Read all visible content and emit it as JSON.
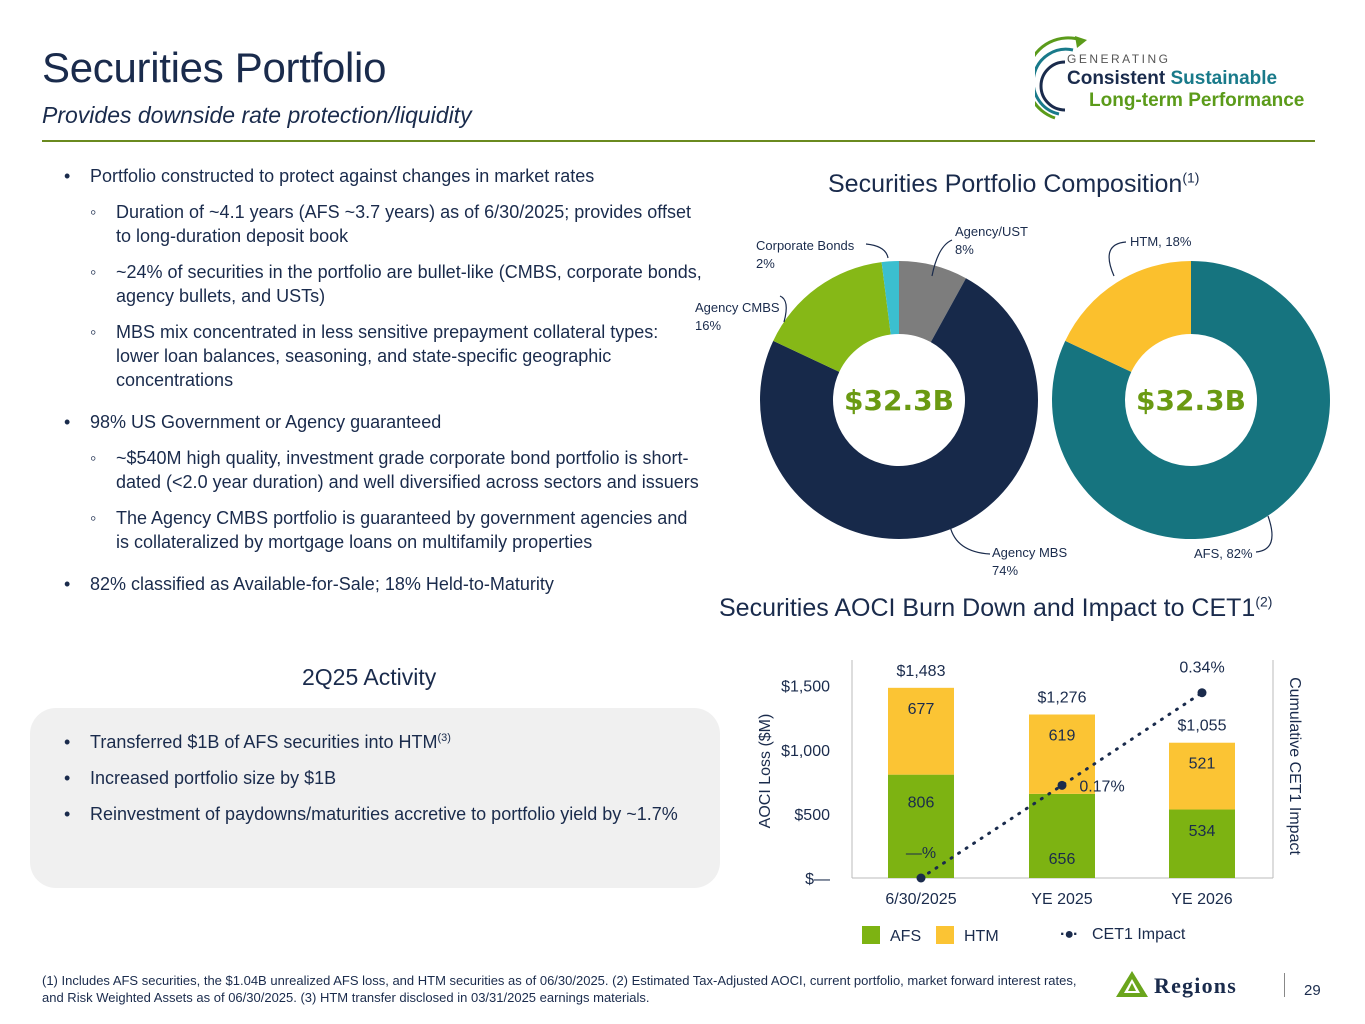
{
  "header": {
    "title": "Securities Portfolio",
    "subtitle": "Provides downside rate protection/liquidity",
    "tagline_top": "GENERATING",
    "tagline_consistent": "Consistent",
    "tagline_sustainable": "Sustainable",
    "tagline_bottom": "Long-term Performance",
    "colors": {
      "navy": "#1a2b4c",
      "green": "#6a9a12",
      "teal": "#197a8a",
      "rule": "#6a8a1f"
    }
  },
  "bullets": [
    {
      "level": 1,
      "text": "Portfolio constructed to protect against changes in market rates"
    },
    {
      "level": 2,
      "text": "Duration of  ~4.1 years (AFS ~3.7 years) as of 6/30/2025; provides offset to long-duration deposit book"
    },
    {
      "level": 2,
      "text": "~24% of securities in the portfolio are bullet-like (CMBS, corporate bonds, agency bullets, and USTs)"
    },
    {
      "level": 2,
      "text": "MBS mix concentrated in less sensitive prepayment collateral types: lower loan balances, seasoning, and state-specific geographic concentrations"
    },
    {
      "level": 1,
      "text": "98% US Government or Agency guaranteed"
    },
    {
      "level": 2,
      "text": "~$540M high quality, investment grade corporate bond portfolio is short-dated (<2.0 year duration) and well diversified across sectors and issuers"
    },
    {
      "level": 2,
      "text": "The Agency CMBS portfolio is guaranteed by government agencies and is collateralized by mortgage loans on multifamily properties"
    },
    {
      "level": 1,
      "text": "82% classified as Available-for-Sale; 18% Held-to-Maturity"
    }
  ],
  "activity": {
    "title": "2Q25 Activity",
    "items": [
      {
        "text": "Transferred $1B of AFS securities into HTM",
        "sup": "(3)"
      },
      {
        "text": "Increased portfolio size by $1B",
        "sup": ""
      },
      {
        "text": "Reinvestment of paydowns/maturities accretive to portfolio yield by ~1.7%",
        "sup": ""
      }
    ]
  },
  "composition": {
    "title": "Securities Portfolio Composition",
    "title_sup": "(1)"
  },
  "aoci": {
    "title": "Securities AOCI Burn Down and Impact to CET1",
    "title_sup": "(2)"
  },
  "chart_data": [
    {
      "type": "pie",
      "variant": "donut",
      "center_label": "$32.3B",
      "labels": [
        "Agency/UST",
        "Agency MBS",
        "Agency CMBS",
        "Corporate Bonds"
      ],
      "values": [
        8,
        74,
        16,
        2
      ],
      "value_labels": [
        "8%",
        "74%",
        "16%",
        "2%"
      ],
      "colors": [
        "#7d7d7d",
        "#17294a",
        "#86b817",
        "#3bbfcf"
      ]
    },
    {
      "type": "pie",
      "variant": "donut",
      "center_label": "$32.3B",
      "labels": [
        "AFS",
        "HTM"
      ],
      "values": [
        82,
        18
      ],
      "label_text": [
        "AFS, 82%",
        "HTM, 18%"
      ],
      "colors": [
        "#16747f",
        "#fbc02d"
      ]
    },
    {
      "type": "bar",
      "stacked": true,
      "categories": [
        "6/30/2025",
        "YE 2025",
        "YE 2026"
      ],
      "series": [
        {
          "name": "AFS",
          "values": [
            806,
            656,
            534
          ],
          "color": "#7db312"
        },
        {
          "name": "HTM",
          "values": [
            677,
            619,
            521
          ],
          "color": "#fbc434"
        }
      ],
      "totals": [
        "$1,483",
        "$1,276",
        "$1,055"
      ],
      "ylabel": "AOCI Loss ($M)",
      "y2label": "Cumulative CET1 Impact",
      "yticks": [
        "$—",
        "$500",
        "$1,000",
        "$1,500"
      ],
      "ylim": [
        0,
        1700
      ],
      "line": {
        "name": "CET1 Impact",
        "values": [
          0,
          0.17,
          0.34
        ],
        "labels": [
          "—%",
          "0.17%",
          "0.34%"
        ],
        "style": "dotted",
        "y2lim": [
          0,
          0.4
        ]
      },
      "legend": [
        "AFS",
        "HTM",
        "CET1 Impact"
      ],
      "legend_position": "bottom"
    }
  ],
  "footer": {
    "footnote": "(1) Includes AFS securities, the $1.04B unrealized AFS loss, and HTM securities as of 06/30/2025.  (2) Estimated Tax-Adjusted AOCI, current portfolio, market forward interest rates, and Risk Weighted Assets as of  06/30/2025. (3) HTM transfer disclosed in 03/31/2025 earnings materials.",
    "brand": "Regions",
    "page_number": "29"
  }
}
